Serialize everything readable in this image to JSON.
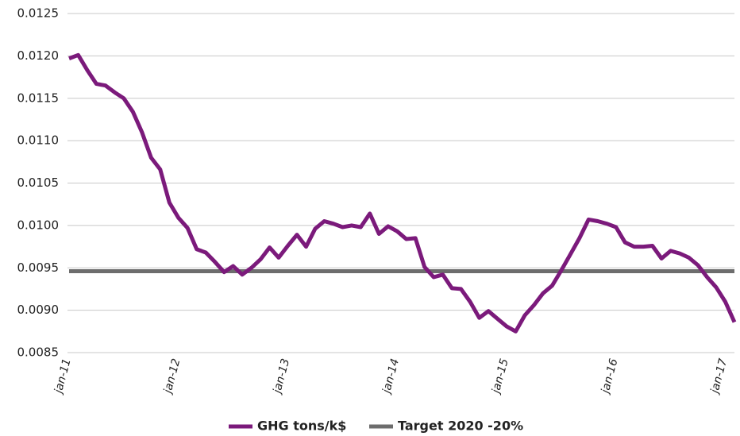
{
  "chart_data": {
    "type": "line",
    "categories": [
      "jan-11",
      null,
      null,
      null,
      null,
      null,
      null,
      null,
      null,
      null,
      null,
      null,
      "jan-12",
      null,
      null,
      null,
      null,
      null,
      null,
      null,
      null,
      null,
      null,
      null,
      "jan-13",
      null,
      null,
      null,
      null,
      null,
      null,
      null,
      null,
      null,
      null,
      null,
      "jan-14",
      null,
      null,
      null,
      null,
      null,
      null,
      null,
      null,
      null,
      null,
      null,
      "jan-15",
      null,
      null,
      null,
      null,
      null,
      null,
      null,
      null,
      null,
      null,
      null,
      "jan-16",
      null,
      null,
      null,
      null,
      null,
      null,
      null,
      null,
      null,
      null,
      null,
      "jan-17",
      null
    ],
    "series": [
      {
        "name": "GHG tons/k$",
        "color": "#7b1a7b",
        "values": [
          0.01197,
          0.01201,
          0.01183,
          0.01167,
          0.01165,
          0.01157,
          0.0115,
          0.01134,
          0.0111,
          0.0108,
          0.01066,
          0.01027,
          0.01009,
          0.00997,
          0.00972,
          0.00968,
          0.00957,
          0.00945,
          0.00952,
          0.00942,
          0.0095,
          0.0096,
          0.00974,
          0.00962,
          0.00976,
          0.00989,
          0.00975,
          0.00996,
          0.01005,
          0.01002,
          0.00998,
          0.01,
          0.00998,
          0.01014,
          0.0099,
          0.00999,
          0.00993,
          0.00984,
          0.00985,
          0.00951,
          0.00939,
          0.00942,
          0.00926,
          0.00925,
          0.0091,
          0.00891,
          0.00899,
          0.0089,
          0.00881,
          0.00875,
          0.00894,
          0.00906,
          0.0092,
          0.00929,
          0.00947,
          0.00966,
          0.00985,
          0.01007,
          0.01005,
          0.01002,
          0.00998,
          0.0098,
          0.00975,
          0.00975,
          0.00976,
          0.00961,
          0.0097,
          0.00967,
          0.00962,
          0.00953,
          0.00939,
          0.00927,
          0.0091,
          0.00886
        ]
      },
      {
        "name": "Target 2020 -20%",
        "color": "#6d6d6d",
        "values": [
          0.00946,
          0.00946,
          0.00946,
          0.00946,
          0.00946,
          0.00946,
          0.00946,
          0.00946,
          0.00946,
          0.00946,
          0.00946,
          0.00946,
          0.00946,
          0.00946,
          0.00946,
          0.00946,
          0.00946,
          0.00946,
          0.00946,
          0.00946,
          0.00946,
          0.00946,
          0.00946,
          0.00946,
          0.00946,
          0.00946,
          0.00946,
          0.00946,
          0.00946,
          0.00946,
          0.00946,
          0.00946,
          0.00946,
          0.00946,
          0.00946,
          0.00946,
          0.00946,
          0.00946,
          0.00946,
          0.00946,
          0.00946,
          0.00946,
          0.00946,
          0.00946,
          0.00946,
          0.00946,
          0.00946,
          0.00946,
          0.00946,
          0.00946,
          0.00946,
          0.00946,
          0.00946,
          0.00946,
          0.00946,
          0.00946,
          0.00946,
          0.00946,
          0.00946,
          0.00946,
          0.00946,
          0.00946,
          0.00946,
          0.00946,
          0.00946,
          0.00946,
          0.00946,
          0.00946,
          0.00946,
          0.00946,
          0.00946,
          0.00946,
          0.00946,
          0.00946
        ]
      }
    ],
    "ylim": [
      0.0085,
      0.0125
    ],
    "yticks": [
      0.0085,
      {
        "value": 0.009,
        "label": "0.0090"
      },
      0.0095,
      {
        "value": 0.01,
        "label": "0.0100"
      },
      0.0105,
      {
        "value": 0.011,
        "label": "0.0110"
      },
      0.0115,
      {
        "value": 0.012,
        "label": "0.0120"
      },
      0.0125
    ],
    "grid": true,
    "legend": "bottom"
  }
}
